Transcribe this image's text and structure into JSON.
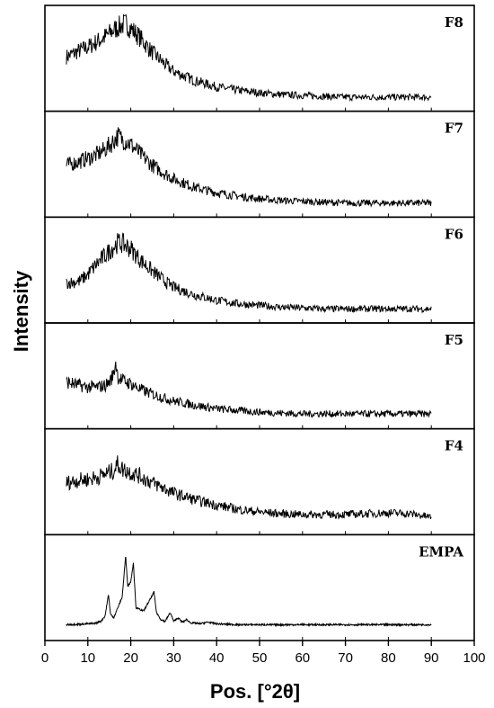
{
  "chart_data": {
    "type": "line",
    "xlabel": "Pos. [°2θ]",
    "ylabel": "Intensity",
    "xlim": [
      0,
      100
    ],
    "xticks": [
      0,
      10,
      20,
      30,
      40,
      50,
      60,
      70,
      80,
      90,
      100
    ],
    "grid": false,
    "panels": [
      {
        "label": "F8",
        "kind": "amorphous",
        "x": [
          5,
          8,
          10,
          12,
          14,
          16,
          18,
          19,
          20,
          22,
          25,
          28,
          30,
          35,
          40,
          45,
          50,
          55,
          60,
          65,
          70,
          75,
          80,
          85,
          90
        ],
        "y": [
          0.55,
          0.62,
          0.66,
          0.72,
          0.78,
          0.86,
          0.92,
          0.93,
          0.88,
          0.78,
          0.6,
          0.46,
          0.38,
          0.27,
          0.2,
          0.16,
          0.13,
          0.11,
          0.1,
          0.09,
          0.08,
          0.08,
          0.08,
          0.08,
          0.08
        ]
      },
      {
        "label": "F7",
        "kind": "amorphous",
        "x": [
          5,
          8,
          10,
          12,
          14,
          16,
          17,
          18,
          19,
          20,
          22,
          25,
          28,
          30,
          35,
          40,
          45,
          50,
          55,
          60,
          65,
          70,
          75,
          80,
          85,
          90
        ],
        "y": [
          0.52,
          0.56,
          0.6,
          0.64,
          0.7,
          0.8,
          0.86,
          0.82,
          0.8,
          0.76,
          0.66,
          0.52,
          0.42,
          0.36,
          0.26,
          0.2,
          0.16,
          0.13,
          0.11,
          0.1,
          0.09,
          0.08,
          0.08,
          0.08,
          0.08,
          0.08
        ]
      },
      {
        "label": "F6",
        "kind": "amorphous",
        "x": [
          5,
          8,
          10,
          12,
          14,
          16,
          17,
          18,
          20,
          22,
          25,
          28,
          30,
          35,
          40,
          45,
          50,
          55,
          60,
          65,
          70,
          75,
          80,
          85,
          90
        ],
        "y": [
          0.38,
          0.4,
          0.48,
          0.6,
          0.7,
          0.8,
          0.85,
          0.84,
          0.78,
          0.66,
          0.52,
          0.4,
          0.33,
          0.24,
          0.18,
          0.14,
          0.12,
          0.1,
          0.09,
          0.08,
          0.08,
          0.08,
          0.08,
          0.08,
          0.08
        ]
      },
      {
        "label": "F5",
        "kind": "amorphous",
        "x": [
          5,
          8,
          10,
          12,
          14,
          15,
          16,
          16.5,
          17,
          18,
          20,
          22,
          25,
          28,
          30,
          35,
          40,
          45,
          50,
          55,
          60,
          65,
          70,
          75,
          80,
          85,
          90
        ],
        "y": [
          0.46,
          0.42,
          0.4,
          0.4,
          0.42,
          0.46,
          0.55,
          0.7,
          0.52,
          0.48,
          0.44,
          0.38,
          0.32,
          0.27,
          0.24,
          0.19,
          0.15,
          0.13,
          0.11,
          0.1,
          0.09,
          0.09,
          0.09,
          0.09,
          0.09,
          0.09,
          0.09
        ]
      },
      {
        "label": "F4",
        "kind": "amorphous",
        "x": [
          5,
          8,
          10,
          12,
          14,
          16,
          17,
          18,
          20,
          22,
          25,
          28,
          30,
          35,
          40,
          45,
          50,
          55,
          60,
          65,
          70,
          75,
          80,
          85,
          90
        ],
        "y": [
          0.52,
          0.55,
          0.56,
          0.58,
          0.62,
          0.66,
          0.74,
          0.68,
          0.64,
          0.6,
          0.52,
          0.45,
          0.4,
          0.32,
          0.26,
          0.21,
          0.18,
          0.16,
          0.15,
          0.15,
          0.15,
          0.16,
          0.17,
          0.16,
          0.12
        ]
      },
      {
        "label": "EMPA",
        "kind": "crystalline",
        "x": [
          5,
          10,
          12,
          13,
          14,
          14.8,
          15.3,
          16,
          17,
          18,
          18.8,
          19.3,
          20,
          20.6,
          21.2,
          22,
          23,
          24,
          24.8,
          25.4,
          26,
          27,
          28,
          29.2,
          30,
          31,
          32,
          33,
          34,
          35,
          36,
          38,
          40,
          45,
          50,
          60,
          70,
          80,
          90
        ],
        "y": [
          0.1,
          0.11,
          0.12,
          0.14,
          0.2,
          0.45,
          0.22,
          0.18,
          0.3,
          0.42,
          0.9,
          0.55,
          0.6,
          0.82,
          0.3,
          0.28,
          0.26,
          0.35,
          0.42,
          0.48,
          0.24,
          0.16,
          0.14,
          0.24,
          0.14,
          0.18,
          0.13,
          0.16,
          0.12,
          0.12,
          0.11,
          0.13,
          0.11,
          0.1,
          0.1,
          0.1,
          0.1,
          0.1,
          0.1
        ]
      }
    ]
  }
}
